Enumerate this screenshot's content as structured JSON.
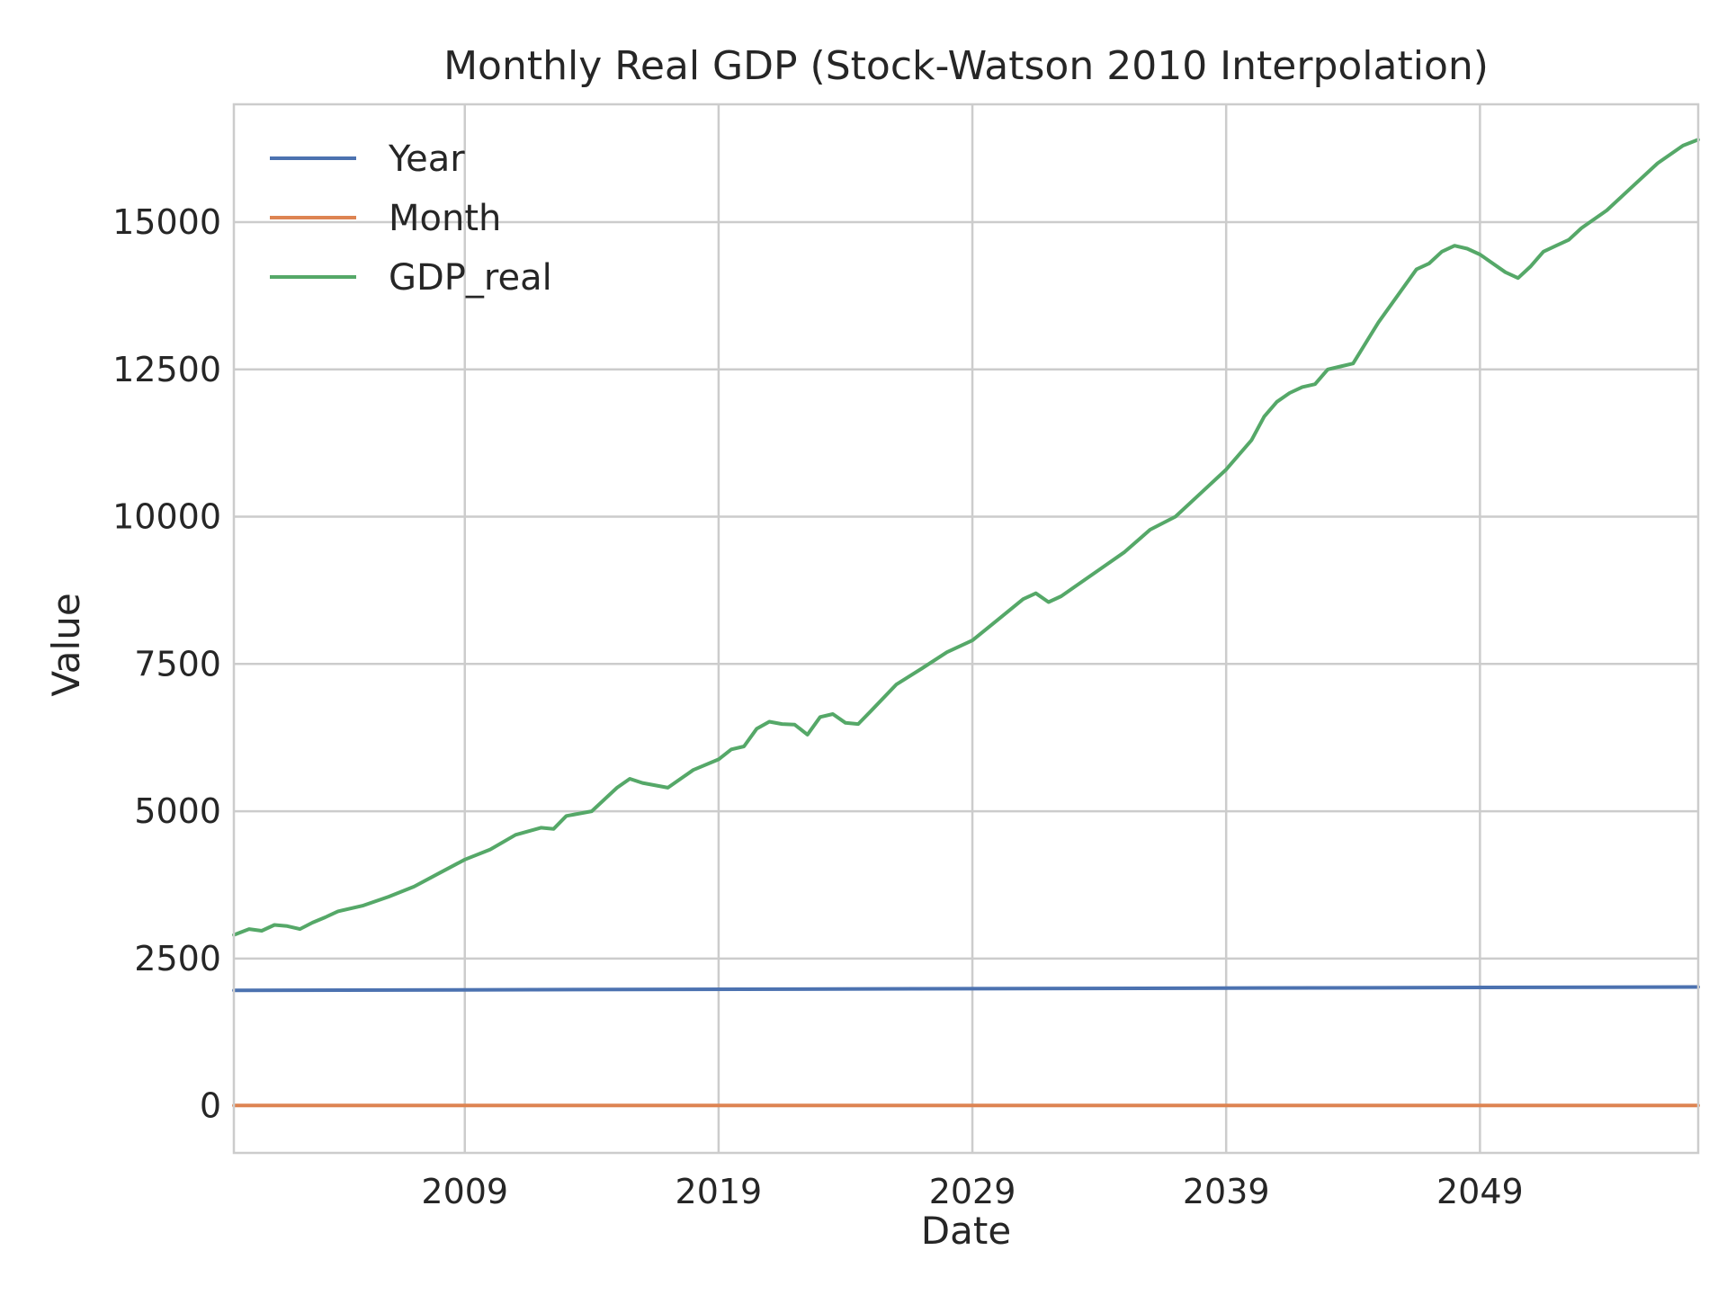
{
  "chart_data": {
    "type": "line",
    "title": "Monthly Real GDP (Stock-Watson 2010 Interpolation)",
    "xlabel": "Date",
    "ylabel": "Value",
    "xlim": [
      1999.9,
      2057.6
    ],
    "ylim": [
      -800,
      17000
    ],
    "x_ticks": [
      2009,
      2019,
      2029,
      2039,
      2049
    ],
    "x_tick_labels": [
      "2009",
      "2019",
      "2029",
      "2039",
      "2049"
    ],
    "y_ticks": [
      0,
      2500,
      5000,
      7500,
      10000,
      12500,
      15000
    ],
    "y_tick_labels": [
      "0",
      "2500",
      "5000",
      "7500",
      "10000",
      "12500",
      "15000"
    ],
    "grid": true,
    "legend_position": "top-left",
    "series": [
      {
        "name": "Year",
        "color": "#4c72b0",
        "x": [
          1999.9,
          2057.6
        ],
        "y": [
          1959,
          2016
        ]
      },
      {
        "name": "Month",
        "color": "#dd8452",
        "x": [
          1999.9,
          2057.6
        ],
        "y": [
          6.5,
          6.5
        ]
      },
      {
        "name": "GDP_real",
        "color": "#55a868",
        "x": [
          1999.9,
          2000.5,
          2001.0,
          2001.5,
          2002.0,
          2002.5,
          2003.0,
          2003.5,
          2004.0,
          2005.0,
          2006.0,
          2007.0,
          2008.0,
          2009.0,
          2010.0,
          2011.0,
          2012.0,
          2012.5,
          2013.0,
          2014.0,
          2014.5,
          2015.0,
          2015.5,
          2016.0,
          2017.0,
          2018.0,
          2019.0,
          2019.5,
          2020.0,
          2020.5,
          2021.0,
          2021.5,
          2022.0,
          2022.5,
          2023.0,
          2023.5,
          2024.0,
          2024.5,
          2025.0,
          2026.0,
          2027.0,
          2028.0,
          2029.0,
          2030.0,
          2031.0,
          2031.5,
          2032.0,
          2032.5,
          2033.0,
          2034.0,
          2035.0,
          2036.0,
          2037.0,
          2038.0,
          2039.0,
          2040.0,
          2040.5,
          2041.0,
          2041.5,
          2042.0,
          2042.5,
          2043.0,
          2043.5,
          2044.0,
          2045.0,
          2046.0,
          2046.5,
          2047.0,
          2047.5,
          2048.0,
          2048.5,
          2049.0,
          2050.0,
          2050.5,
          2051.0,
          2051.5,
          2052.0,
          2052.5,
          2053.0,
          2054.0,
          2055.0,
          2056.0,
          2057.0,
          2057.6
        ],
        "y": [
          2900,
          3000,
          2970,
          3070,
          3050,
          3000,
          3110,
          3200,
          3300,
          3400,
          3550,
          3720,
          3950,
          4180,
          4350,
          4600,
          4720,
          4700,
          4920,
          5000,
          5200,
          5400,
          5550,
          5480,
          5400,
          5700,
          5880,
          6050,
          6100,
          6400,
          6520,
          6480,
          6470,
          6300,
          6600,
          6650,
          6500,
          6480,
          6700,
          7150,
          7420,
          7700,
          7900,
          8250,
          8600,
          8700,
          8550,
          8650,
          8800,
          9100,
          9400,
          9780,
          10000,
          10400,
          10800,
          11300,
          11700,
          11950,
          12100,
          12200,
          12250,
          12500,
          12550,
          12600,
          13300,
          13900,
          14200,
          14300,
          14500,
          14600,
          14550,
          14450,
          14150,
          14050,
          14250,
          14500,
          14600,
          14700,
          14900,
          15200,
          15600,
          16000,
          16300,
          16400
        ]
      }
    ]
  }
}
